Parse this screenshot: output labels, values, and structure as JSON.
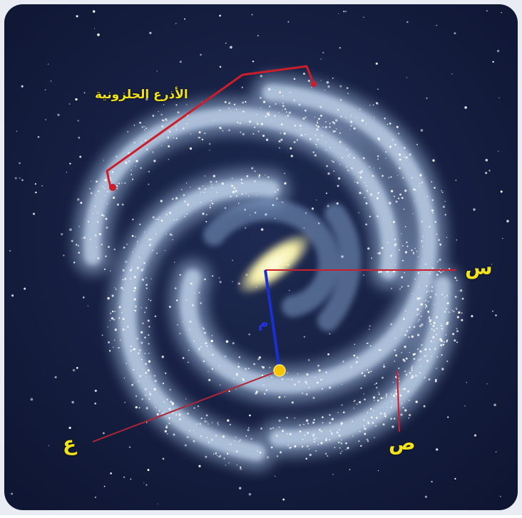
{
  "labels": {
    "spiral_arms": "الأذرع الحلزونية",
    "x_marker": "س",
    "y_marker": "ص",
    "a_marker": "ع",
    "center_marker": "م"
  },
  "colors": {
    "background": "#151e3f",
    "label_text": "#f2e21c",
    "bracket_line": "#cc1e2a",
    "radius_line": "#1a2fd0",
    "sun_dot": "#f5c400",
    "galaxy_glow": "#c7d9ef"
  },
  "icons": [
    "sun-dot",
    "galactic-bulge"
  ]
}
